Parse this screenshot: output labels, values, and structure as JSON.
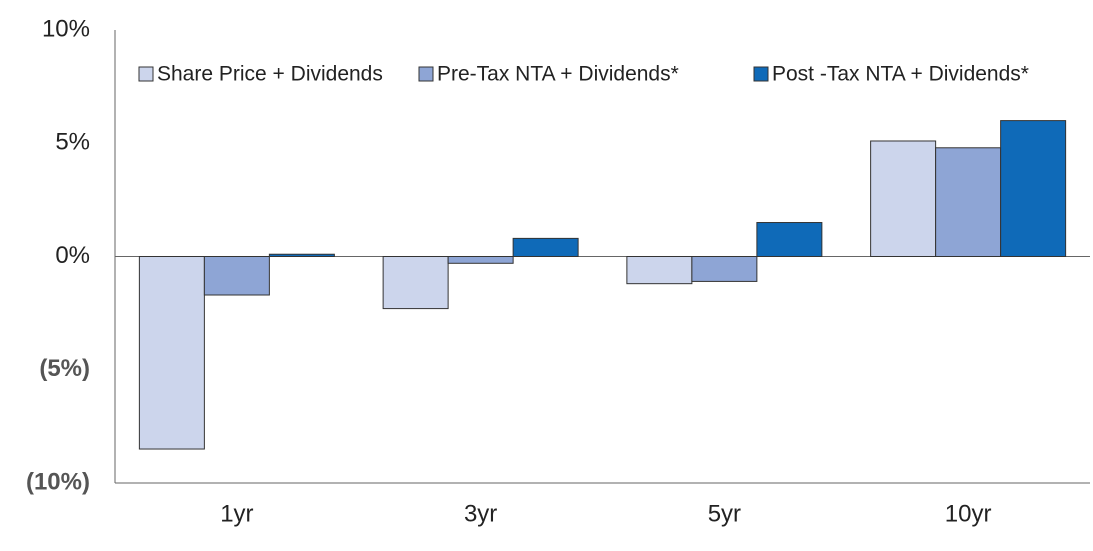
{
  "chart_data": {
    "type": "bar",
    "categories": [
      "1yr",
      "3yr",
      "5yr",
      "10yr"
    ],
    "series": [
      {
        "name": "Share Price + Dividends",
        "color": "#ccd5ec",
        "values": [
          -8.5,
          -2.3,
          -1.2,
          5.1
        ]
      },
      {
        "name": "Pre-Tax NTA + Dividends*",
        "color": "#8ea5d5",
        "values": [
          -1.7,
          -0.3,
          -1.1,
          4.8
        ]
      },
      {
        "name": "Post -Tax NTA + Dividends*",
        "color": "#0f6ab8",
        "values": [
          0.1,
          0.8,
          1.5,
          6.0
        ]
      }
    ],
    "ylim": [
      -10,
      10
    ],
    "yticks": [
      {
        "value": 10,
        "label": "10%"
      },
      {
        "value": 5,
        "label": "5%"
      },
      {
        "value": 0,
        "label": "0%"
      },
      {
        "value": -5,
        "label": "(5%)"
      },
      {
        "value": -10,
        "label": "(10%)"
      }
    ],
    "legend": "top"
  }
}
